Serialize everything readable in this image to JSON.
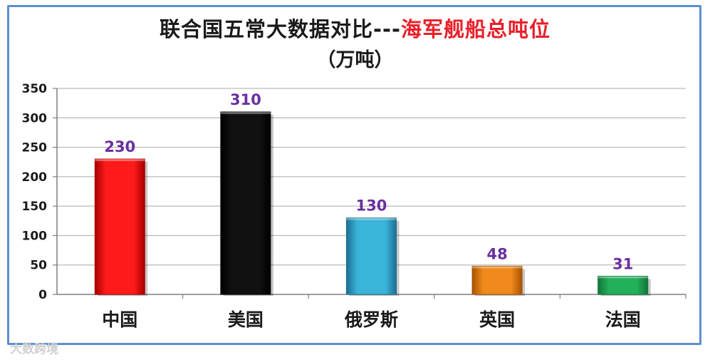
{
  "chart_data": {
    "type": "bar",
    "title_main": "联合国五常大数据对比---",
    "title_accent": "海军舰船总吨位",
    "subtitle": "（万吨）",
    "categories": [
      "中国",
      "美国",
      "俄罗斯",
      "英国",
      "法国"
    ],
    "values": [
      230,
      310,
      130,
      48,
      31
    ],
    "data_labels": [
      "230",
      "310",
      "130",
      "48",
      "31"
    ],
    "bar_colors": [
      "#ff1a1a",
      "#111111",
      "#3ab4d8",
      "#f08a1c",
      "#23b05a"
    ],
    "bar_colors_dark": [
      "#a80000",
      "#000000",
      "#1c6f91",
      "#a85200",
      "#11753a"
    ],
    "ylim": [
      0,
      350
    ],
    "yticks": [
      0,
      50,
      100,
      150,
      200,
      250,
      300,
      350
    ],
    "ytick_labels": [
      "0",
      "50",
      "100",
      "150",
      "200",
      "250",
      "300",
      "350"
    ],
    "grid": true,
    "legend": "none",
    "label_color": "#6a2fa0"
  },
  "watermark": "大数跨境"
}
